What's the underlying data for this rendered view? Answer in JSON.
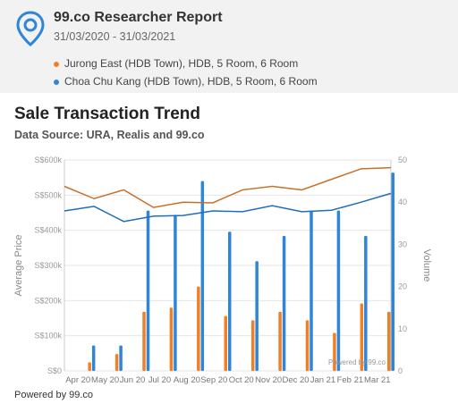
{
  "header": {
    "title": "99.co Researcher Report",
    "date_range": "31/03/2020 - 31/03/2021",
    "legend": [
      {
        "label": "Jurong East (HDB Town), HDB, 5 Room, 6 Room",
        "color": "#f07f27"
      },
      {
        "label": "Choa Chu Kang (HDB Town), HDB, 5 Room, 6 Room",
        "color": "#2f86d8"
      }
    ]
  },
  "chart_title": "Sale Transaction Trend",
  "chart_subtitle": "Data Source: URA, Realis and 99.co",
  "footer": "Powered by 99.co",
  "watermark": "Powered by 99.co",
  "chart_data": {
    "type": "bar+line",
    "categories": [
      "Apr 20",
      "May 20",
      "Jun 20",
      "Jul 20",
      "Aug 20",
      "Sep 20",
      "Oct 20",
      "Nov 20",
      "Dec 20",
      "Jan 21",
      "Feb 21",
      "Mar 21"
    ],
    "ylabel_left": "Average Price",
    "ylabel_right": "Volume",
    "yticks_left": [
      "S$0",
      "S$100k",
      "S$200k",
      "S$300k",
      "S$400k",
      "S$500k",
      "S$600k"
    ],
    "yticks_right": [
      "0",
      "10",
      "20",
      "30",
      "40",
      "50"
    ],
    "ylim_left": [
      0,
      600000
    ],
    "ylim_right": [
      0,
      50
    ],
    "grid": true,
    "price_series": [
      {
        "name": "Jurong East (HDB Town), HDB, 5 Room, 6 Room",
        "color": "#c8702a",
        "values": [
          525000,
          490000,
          515000,
          465000,
          480000,
          478000,
          515000,
          525000,
          515000,
          545000,
          575000,
          578000
        ]
      },
      {
        "name": "Choa Chu Kang (HDB Town), HDB, 5 Room, 6 Room",
        "color": "#1f6fb8",
        "values": [
          455000,
          468000,
          425000,
          440000,
          442000,
          455000,
          453000,
          470000,
          453000,
          457000,
          480000,
          505000
        ]
      }
    ],
    "volume_series": [
      {
        "name": "Jurong East (HDB Town), HDB, 5 Room, 6 Room",
        "color": "#f07f27",
        "values": [
          2,
          4,
          14,
          15,
          20,
          13,
          12,
          14,
          12,
          9,
          16,
          14
        ]
      },
      {
        "name": "Choa Chu Kang (HDB Town), HDB, 5 Room, 6 Room",
        "color": "#2f86d8",
        "values": [
          6,
          6,
          38,
          37,
          45,
          33,
          26,
          32,
          38,
          38,
          32,
          47
        ]
      }
    ]
  }
}
